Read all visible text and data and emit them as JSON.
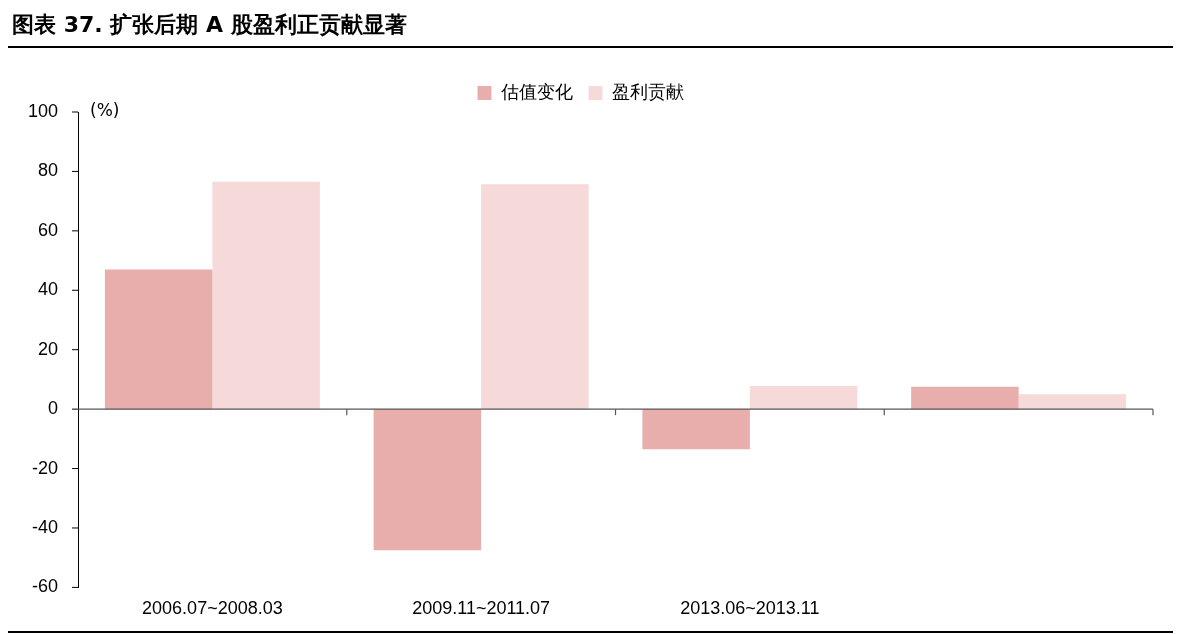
{
  "chart_data": {
    "type": "bar",
    "title": "图表 37. 扩张后期 A 股盈利正贡献显著",
    "ylabel": "(%)",
    "categories": [
      "2006.07~2008.03",
      "2009.11~2011.07",
      "2013.06~2013.11",
      null
    ],
    "series": [
      {
        "name": "估值变化",
        "color": "#e8aeac",
        "values": [
          47,
          -47.5,
          -13.5,
          7.5
        ]
      },
      {
        "name": "盈利贡献",
        "color": "#f6dada",
        "values": [
          76.5,
          75.7,
          7.8,
          5
        ]
      }
    ],
    "ylim": [
      -60,
      100
    ],
    "yticks": [
      -60,
      -40,
      -20,
      0,
      20,
      40,
      60,
      80,
      100
    ],
    "legend": "top"
  }
}
